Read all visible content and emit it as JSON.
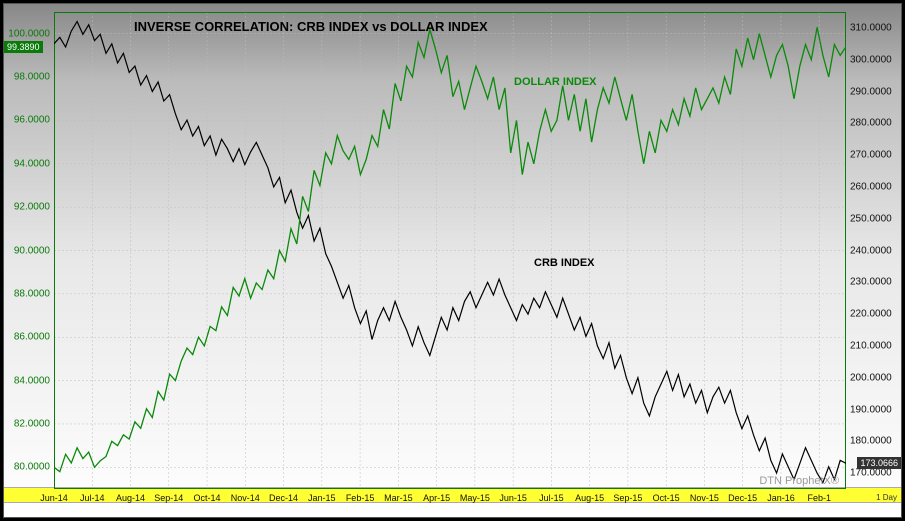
{
  "chart": {
    "type": "line-dual-axis",
    "title": "INVERSE CORRELATION:  CRB INDEX vs DOLLAR INDEX",
    "watermark": "DTN ProphetX®",
    "interval_label": "1 Day",
    "background_gradient": [
      "#888888",
      "#e8e8e8",
      "#ffffff"
    ],
    "grid_color": "#bdbdbd",
    "x_axis": {
      "band_color": "#ffff33",
      "labels": [
        "Jun-14",
        "Jul-14",
        "Aug-14",
        "Sep-14",
        "Oct-14",
        "Nov-14",
        "Dec-14",
        "Jan-15",
        "Feb-15",
        "Mar-15",
        "Apr-15",
        "May-15",
        "Jun-15",
        "Jul-15",
        "Aug-15",
        "Sep-15",
        "Oct-15",
        "Nov-15",
        "Dec-15",
        "Jan-16",
        "Feb-1"
      ]
    },
    "left_axis": {
      "color": "#0a7a0a",
      "min": 79.0,
      "max": 101.0,
      "labels": [
        "80.0000",
        "82.0000",
        "84.0000",
        "86.0000",
        "88.0000",
        "90.0000",
        "92.0000",
        "94.0000",
        "96.0000",
        "98.0000",
        "99.3890",
        "100.0000"
      ],
      "current_tag": "99.3890"
    },
    "right_axis": {
      "color": "#111111",
      "min": 165.0,
      "max": 315.0,
      "labels": [
        "170.0000",
        "173.0666",
        "180.0000",
        "190.0000",
        "200.0000",
        "210.0000",
        "220.0000",
        "230.0000",
        "240.0000",
        "250.0000",
        "260.0000",
        "270.0000",
        "280.0000",
        "290.0000",
        "300.0000",
        "310.0000"
      ],
      "current_tag": "173.0666"
    },
    "series_labels": {
      "dollar": {
        "text": "DOLLAR INDEX",
        "color": "#0a8a0a"
      },
      "crb": {
        "text": "CRB INDEX",
        "color": "#000000"
      }
    },
    "series": {
      "dollar": {
        "axis": "left",
        "color": "#0a8a0a",
        "line_width": 1.3,
        "data": [
          [
            0,
            80.0
          ],
          [
            0.5,
            79.8
          ],
          [
            1,
            80.6
          ],
          [
            1.5,
            80.2
          ],
          [
            2,
            80.9
          ],
          [
            2.5,
            80.4
          ],
          [
            3,
            80.7
          ],
          [
            3.5,
            80.0
          ],
          [
            4,
            80.3
          ],
          [
            4.5,
            80.5
          ],
          [
            5,
            81.2
          ],
          [
            5.5,
            81.0
          ],
          [
            6,
            81.5
          ],
          [
            6.5,
            81.3
          ],
          [
            7,
            82.1
          ],
          [
            7.5,
            81.8
          ],
          [
            8,
            82.7
          ],
          [
            8.5,
            82.3
          ],
          [
            9,
            83.5
          ],
          [
            9.5,
            83.1
          ],
          [
            10,
            84.3
          ],
          [
            10.5,
            84.0
          ],
          [
            11,
            84.9
          ],
          [
            11.5,
            85.5
          ],
          [
            12,
            85.2
          ],
          [
            12.5,
            86.0
          ],
          [
            13,
            85.6
          ],
          [
            13.5,
            86.5
          ],
          [
            14,
            86.3
          ],
          [
            14.5,
            87.4
          ],
          [
            15,
            87.0
          ],
          [
            15.5,
            88.3
          ],
          [
            16,
            87.9
          ],
          [
            16.5,
            88.7
          ],
          [
            17,
            87.8
          ],
          [
            17.5,
            88.5
          ],
          [
            18,
            88.2
          ],
          [
            18.5,
            89.1
          ],
          [
            19,
            88.7
          ],
          [
            19.5,
            90.0
          ],
          [
            20,
            89.5
          ],
          [
            20.5,
            91.0
          ],
          [
            21,
            90.3
          ],
          [
            21.5,
            92.5
          ],
          [
            22,
            91.8
          ],
          [
            22.5,
            93.7
          ],
          [
            23,
            93.0
          ],
          [
            23.5,
            94.5
          ],
          [
            24,
            94.0
          ],
          [
            24.5,
            95.3
          ],
          [
            25,
            94.6
          ],
          [
            25.5,
            94.2
          ],
          [
            26,
            94.8
          ],
          [
            26.5,
            93.5
          ],
          [
            27,
            94.2
          ],
          [
            27.5,
            95.3
          ],
          [
            28,
            94.8
          ],
          [
            28.5,
            96.5
          ],
          [
            29,
            95.6
          ],
          [
            29.5,
            97.7
          ],
          [
            30,
            96.9
          ],
          [
            30.5,
            98.5
          ],
          [
            31,
            98.0
          ],
          [
            31.5,
            99.6
          ],
          [
            32,
            98.9
          ],
          [
            32.5,
            100.2
          ],
          [
            33,
            99.3
          ],
          [
            33.5,
            98.2
          ],
          [
            34,
            99.0
          ],
          [
            34.5,
            97.1
          ],
          [
            35,
            97.8
          ],
          [
            35.5,
            96.5
          ],
          [
            36,
            97.5
          ],
          [
            36.5,
            98.5
          ],
          [
            37,
            97.8
          ],
          [
            37.5,
            97.0
          ],
          [
            38,
            98.0
          ],
          [
            38.5,
            96.5
          ],
          [
            39,
            97.5
          ],
          [
            39.5,
            94.5
          ],
          [
            40,
            96.0
          ],
          [
            40.5,
            93.5
          ],
          [
            41,
            95.0
          ],
          [
            41.5,
            94.0
          ],
          [
            42,
            95.5
          ],
          [
            42.5,
            96.5
          ],
          [
            43,
            95.5
          ],
          [
            43.5,
            96.0
          ],
          [
            44,
            97.6
          ],
          [
            44.5,
            96.0
          ],
          [
            45,
            97.2
          ],
          [
            45.5,
            95.5
          ],
          [
            46,
            97.0
          ],
          [
            46.5,
            95.0
          ],
          [
            47,
            96.5
          ],
          [
            47.5,
            97.5
          ],
          [
            48,
            96.8
          ],
          [
            48.5,
            98.0
          ],
          [
            49,
            97.0
          ],
          [
            49.5,
            96.0
          ],
          [
            50,
            97.2
          ],
          [
            50.5,
            95.5
          ],
          [
            51,
            94.0
          ],
          [
            51.5,
            95.5
          ],
          [
            52,
            94.5
          ],
          [
            52.5,
            96.0
          ],
          [
            53,
            95.5
          ],
          [
            53.5,
            96.5
          ],
          [
            54,
            95.8
          ],
          [
            54.5,
            97.0
          ],
          [
            55,
            96.2
          ],
          [
            55.5,
            97.5
          ],
          [
            56,
            96.5
          ],
          [
            56.5,
            97.0
          ],
          [
            57,
            97.5
          ],
          [
            57.5,
            96.8
          ],
          [
            58,
            98.0
          ],
          [
            58.5,
            97.2
          ],
          [
            59,
            99.3
          ],
          [
            59.5,
            98.5
          ],
          [
            60,
            99.8
          ],
          [
            60.5,
            98.8
          ],
          [
            61,
            100.0
          ],
          [
            61.5,
            99.0
          ],
          [
            62,
            98.0
          ],
          [
            62.5,
            99.0
          ],
          [
            63,
            99.5
          ],
          [
            63.5,
            98.5
          ],
          [
            64,
            97.0
          ],
          [
            64.5,
            98.5
          ],
          [
            65,
            99.5
          ],
          [
            65.5,
            98.8
          ],
          [
            66,
            100.3
          ],
          [
            66.5,
            99.0
          ],
          [
            67,
            98.0
          ],
          [
            67.5,
            99.5
          ],
          [
            68,
            99.0
          ],
          [
            68.5,
            99.4
          ]
        ]
      },
      "crb": {
        "axis": "right",
        "color": "#000000",
        "line_width": 1.2,
        "data": [
          [
            0,
            305
          ],
          [
            0.5,
            307
          ],
          [
            1,
            304
          ],
          [
            1.5,
            309
          ],
          [
            2,
            312
          ],
          [
            2.5,
            308
          ],
          [
            3,
            311
          ],
          [
            3.5,
            306
          ],
          [
            4,
            308
          ],
          [
            4.5,
            302
          ],
          [
            5,
            305
          ],
          [
            5.5,
            299
          ],
          [
            6,
            302
          ],
          [
            6.5,
            296
          ],
          [
            7,
            298
          ],
          [
            7.5,
            292
          ],
          [
            8,
            295
          ],
          [
            8.5,
            290
          ],
          [
            9,
            293
          ],
          [
            9.5,
            287
          ],
          [
            10,
            289
          ],
          [
            10.5,
            283
          ],
          [
            11,
            278
          ],
          [
            11.5,
            281
          ],
          [
            12,
            276
          ],
          [
            12.5,
            279
          ],
          [
            13,
            273
          ],
          [
            13.5,
            276
          ],
          [
            14,
            270
          ],
          [
            14.5,
            275
          ],
          [
            15,
            272
          ],
          [
            15.5,
            268
          ],
          [
            16,
            272
          ],
          [
            16.5,
            267
          ],
          [
            17,
            271
          ],
          [
            17.5,
            274
          ],
          [
            18,
            270
          ],
          [
            18.5,
            266
          ],
          [
            19,
            260
          ],
          [
            19.5,
            263
          ],
          [
            20,
            255
          ],
          [
            20.5,
            259
          ],
          [
            21,
            252
          ],
          [
            21.5,
            247
          ],
          [
            22,
            251
          ],
          [
            22.5,
            243
          ],
          [
            23,
            247
          ],
          [
            23.5,
            239
          ],
          [
            24,
            235
          ],
          [
            24.5,
            230
          ],
          [
            25,
            225
          ],
          [
            25.5,
            229
          ],
          [
            26,
            222
          ],
          [
            26.5,
            217
          ],
          [
            27,
            221
          ],
          [
            27.5,
            212
          ],
          [
            28,
            218
          ],
          [
            28.5,
            222
          ],
          [
            29,
            218
          ],
          [
            29.5,
            224
          ],
          [
            30,
            219
          ],
          [
            30.5,
            215
          ],
          [
            31,
            210
          ],
          [
            31.5,
            216
          ],
          [
            32,
            211
          ],
          [
            32.5,
            207
          ],
          [
            33,
            213
          ],
          [
            33.5,
            219
          ],
          [
            34,
            215
          ],
          [
            34.5,
            222
          ],
          [
            35,
            218
          ],
          [
            35.5,
            224
          ],
          [
            36,
            227
          ],
          [
            36.5,
            222
          ],
          [
            37,
            226
          ],
          [
            37.5,
            230
          ],
          [
            38,
            226
          ],
          [
            38.5,
            231
          ],
          [
            39,
            226
          ],
          [
            39.5,
            222
          ],
          [
            40,
            218
          ],
          [
            40.5,
            223
          ],
          [
            41,
            220
          ],
          [
            41.5,
            225
          ],
          [
            42,
            222
          ],
          [
            42.5,
            227
          ],
          [
            43,
            223
          ],
          [
            43.5,
            219
          ],
          [
            44,
            225
          ],
          [
            44.5,
            220
          ],
          [
            45,
            215
          ],
          [
            45.5,
            219
          ],
          [
            46,
            213
          ],
          [
            46.5,
            217
          ],
          [
            47,
            210
          ],
          [
            47.5,
            206
          ],
          [
            48,
            211
          ],
          [
            48.5,
            203
          ],
          [
            49,
            207
          ],
          [
            49.5,
            200
          ],
          [
            50,
            195
          ],
          [
            50.5,
            200
          ],
          [
            51,
            192
          ],
          [
            51.5,
            188
          ],
          [
            52,
            194
          ],
          [
            52.5,
            198
          ],
          [
            53,
            202
          ],
          [
            53.5,
            196
          ],
          [
            54,
            201
          ],
          [
            54.5,
            194
          ],
          [
            55,
            198
          ],
          [
            55.5,
            192
          ],
          [
            56,
            196
          ],
          [
            56.5,
            189
          ],
          [
            57,
            194
          ],
          [
            57.5,
            197
          ],
          [
            58,
            192
          ],
          [
            58.5,
            196
          ],
          [
            59,
            189
          ],
          [
            59.5,
            184
          ],
          [
            60,
            188
          ],
          [
            60.5,
            182
          ],
          [
            61,
            177
          ],
          [
            61.5,
            181
          ],
          [
            62,
            174
          ],
          [
            62.5,
            170
          ],
          [
            63,
            176
          ],
          [
            63.5,
            172
          ],
          [
            64,
            168
          ],
          [
            64.5,
            173
          ],
          [
            65,
            178
          ],
          [
            65.5,
            174
          ],
          [
            66,
            170
          ],
          [
            66.5,
            167
          ],
          [
            67,
            172
          ],
          [
            67.5,
            168
          ],
          [
            68,
            174
          ],
          [
            68.5,
            173.07
          ]
        ]
      }
    }
  }
}
